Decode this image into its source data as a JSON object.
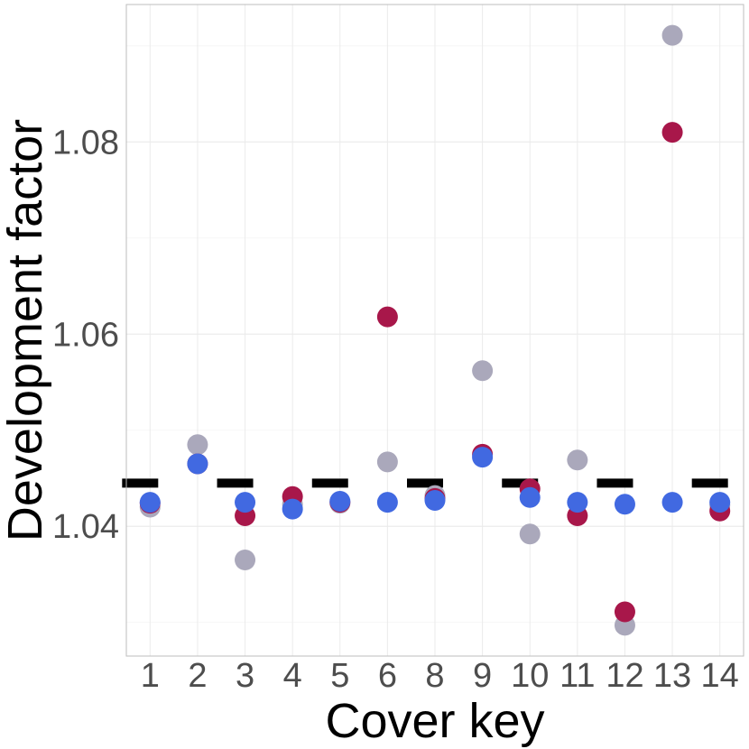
{
  "chart_data": {
    "type": "scatter",
    "title": "",
    "xlabel": "Cover key",
    "ylabel": "Development factor",
    "categories": [
      "1",
      "2",
      "3",
      "4",
      "5",
      "6",
      "8",
      "9",
      "10",
      "11",
      "12",
      "13",
      "14"
    ],
    "ylim": [
      1.0265,
      1.0943
    ],
    "yticks": [
      1.04,
      1.06,
      1.08
    ],
    "ytick_labels": [
      "1.04",
      "1.06",
      "1.08"
    ],
    "grid": true,
    "legend": "none",
    "reference_line": {
      "value": 1.0445,
      "style": "dashed",
      "color": "#000000"
    },
    "series": [
      {
        "color": "#aaa8bb",
        "values": [
          1.042,
          1.0485,
          1.0365,
          1.0423,
          1.0424,
          1.0467,
          1.0432,
          1.0562,
          1.0392,
          1.0469,
          1.0297,
          1.0911,
          1.0422
        ]
      },
      {
        "color": "#a8174a",
        "values": [
          1.0424,
          1.0465,
          1.0411,
          1.0431,
          1.0425,
          1.0618,
          1.0429,
          1.0475,
          1.0439,
          1.0411,
          1.0311,
          1.081,
          1.0416
        ]
      },
      {
        "color": "#4169e1",
        "values": [
          1.0425,
          1.0465,
          1.0425,
          1.0418,
          1.0426,
          1.0425,
          1.0427,
          1.0472,
          1.043,
          1.0425,
          1.0423,
          1.0425,
          1.0425
        ]
      }
    ]
  }
}
